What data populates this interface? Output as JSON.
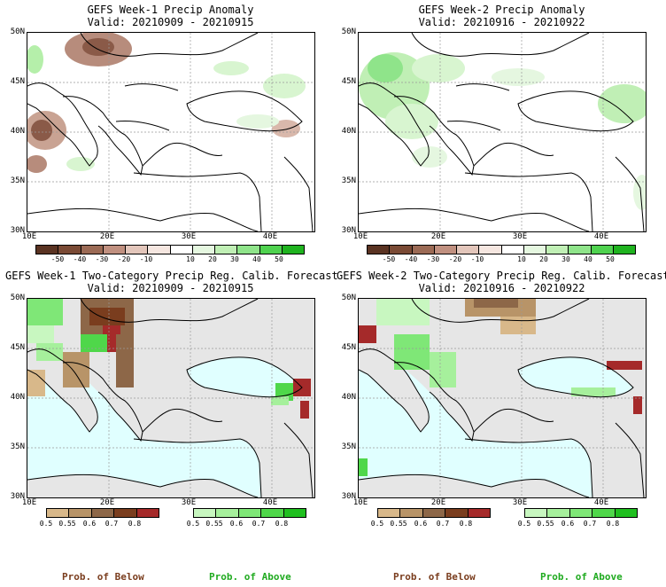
{
  "panels": [
    {
      "title": "GEFS Week-1 Precip Anomaly",
      "valid": "Valid: 20210909 - 20210915"
    },
    {
      "title": "GEFS Week-2 Precip Anomaly",
      "valid": "Valid: 20210916 - 20210922"
    },
    {
      "title": "GEFS Week-1 Two-Category Precip Reg. Calib. Forecast",
      "valid": "Valid: 20210909 - 20210915"
    },
    {
      "title": "GEFS Week-2 Two-Category Precip Reg. Calib. Forecast",
      "valid": "Valid: 20210916 - 20210922"
    }
  ],
  "axes": {
    "lat_labels": [
      "50N",
      "45N",
      "40N",
      "35N",
      "30N"
    ],
    "lon_labels": [
      "10E",
      "20E",
      "30E",
      "40E"
    ]
  },
  "anomaly_colorbar": {
    "ticks": [
      "-50",
      "-40",
      "-30",
      "-20",
      "-10",
      "10",
      "20",
      "30",
      "40",
      "50"
    ],
    "colors": [
      "#5a3322",
      "#7a4a35",
      "#9b6a55",
      "#c09080",
      "#e3c6bb",
      "#f5e6e0",
      "#ffffff",
      "#e5f7e0",
      "#c0efb5",
      "#8fe48a",
      "#4fd24f",
      "#1fb31f"
    ]
  },
  "prob_colorbar": {
    "below_ticks": [
      "0.5",
      "0.55",
      "0.6",
      "0.7",
      "0.8"
    ],
    "below_colors": [
      "#d8b88a",
      "#b89468",
      "#8d6748",
      "#7a3d1e",
      "#a52a2a"
    ],
    "above_ticks": [
      "0.5",
      "0.55",
      "0.6",
      "0.7",
      "0.8"
    ],
    "above_colors": [
      "#c8f7c0",
      "#a6f09c",
      "#7fe777",
      "#4fd74a",
      "#1fbf1f"
    ]
  },
  "legend": {
    "below_label": "Prob. of Below",
    "above_label": "Prob. of Above",
    "below_color": "#7a3d1e",
    "above_color": "#1faa1f"
  },
  "map_colors": {
    "sea_prob": "#e0ffff",
    "land_prob": "#e6e6e6",
    "coast": "#000000"
  }
}
